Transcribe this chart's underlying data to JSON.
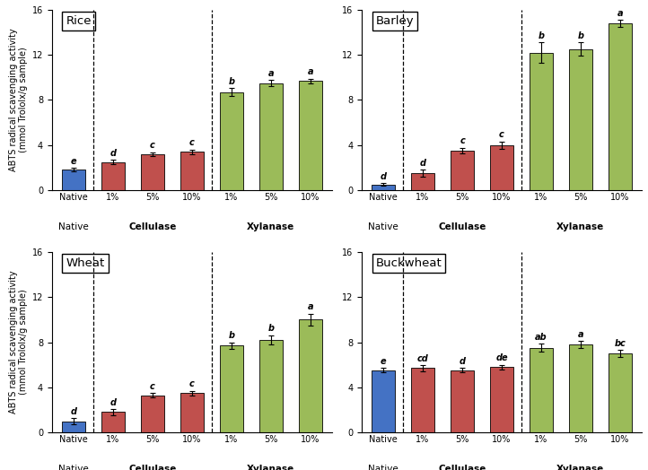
{
  "panels": [
    {
      "title": "Rice",
      "categories": [
        "Native",
        "1%",
        "5%",
        "10%",
        "1%",
        "5%",
        "10%"
      ],
      "values": [
        1.8,
        2.5,
        3.2,
        3.4,
        8.7,
        9.5,
        9.7
      ],
      "errors": [
        0.15,
        0.2,
        0.18,
        0.2,
        0.35,
        0.25,
        0.2
      ],
      "letters": [
        "e",
        "d",
        "c",
        "c",
        "b",
        "a",
        "a"
      ],
      "colors": [
        "#4472c4",
        "#c0504d",
        "#c0504d",
        "#c0504d",
        "#9bbb59",
        "#9bbb59",
        "#9bbb59"
      ],
      "ylim": [
        0,
        16
      ],
      "yticks": [
        0,
        4,
        8,
        12,
        16
      ]
    },
    {
      "title": "Barley",
      "categories": [
        "Native",
        "1%",
        "5%",
        "10%",
        "1%",
        "5%",
        "10%"
      ],
      "values": [
        0.5,
        1.5,
        3.5,
        4.0,
        12.2,
        12.5,
        14.8
      ],
      "errors": [
        0.1,
        0.3,
        0.25,
        0.3,
        0.9,
        0.6,
        0.3
      ],
      "letters": [
        "d",
        "d",
        "c",
        "c",
        "b",
        "b",
        "a"
      ],
      "colors": [
        "#4472c4",
        "#c0504d",
        "#c0504d",
        "#c0504d",
        "#9bbb59",
        "#9bbb59",
        "#9bbb59"
      ],
      "ylim": [
        0,
        16
      ],
      "yticks": [
        0,
        4,
        8,
        12,
        16
      ]
    },
    {
      "title": "Wheat",
      "categories": [
        "Native",
        "1%",
        "5%",
        "10%",
        "1%",
        "5%",
        "10%"
      ],
      "values": [
        1.0,
        1.8,
        3.3,
        3.5,
        7.7,
        8.2,
        10.0
      ],
      "errors": [
        0.25,
        0.25,
        0.2,
        0.2,
        0.3,
        0.4,
        0.55
      ],
      "letters": [
        "d",
        "d",
        "c",
        "c",
        "b",
        "b",
        "a"
      ],
      "colors": [
        "#4472c4",
        "#c0504d",
        "#c0504d",
        "#c0504d",
        "#9bbb59",
        "#9bbb59",
        "#9bbb59"
      ],
      "ylim": [
        0,
        16
      ],
      "yticks": [
        0,
        4,
        8,
        12,
        16
      ]
    },
    {
      "title": "Buckwheat",
      "categories": [
        "Native",
        "1%",
        "5%",
        "10%",
        "1%",
        "5%",
        "10%"
      ],
      "values": [
        5.5,
        5.7,
        5.5,
        5.8,
        7.5,
        7.8,
        7.0
      ],
      "errors": [
        0.2,
        0.25,
        0.2,
        0.2,
        0.35,
        0.3,
        0.3
      ],
      "letters": [
        "e",
        "cd",
        "d",
        "de",
        "ab",
        "a",
        "bc"
      ],
      "colors": [
        "#4472c4",
        "#c0504d",
        "#c0504d",
        "#c0504d",
        "#9bbb59",
        "#9bbb59",
        "#9bbb59"
      ],
      "ylim": [
        0,
        16
      ],
      "yticks": [
        0,
        4,
        8,
        12,
        16
      ]
    }
  ],
  "ylabel": "ABTS radical scavenging activity\n(mmol Trololx/g sample)",
  "background_color": "#ffffff",
  "bar_width": 0.6
}
